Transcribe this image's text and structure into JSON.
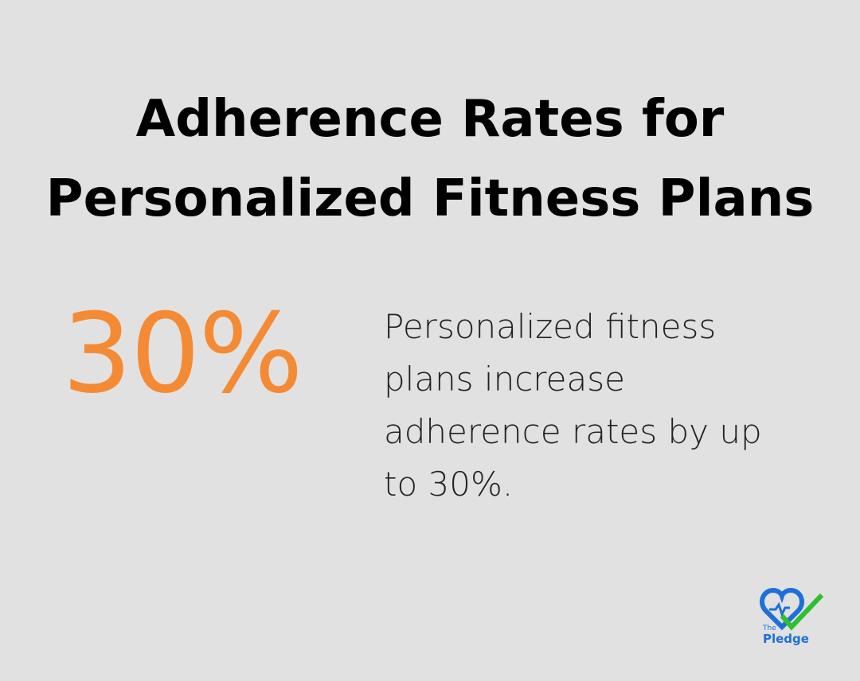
{
  "title": [
    "Adherence Rates for",
    "Personalized Fitness Plans"
  ],
  "stat": "30%",
  "description": "Personalized fitness plans increase adherence rates by up to 30%.",
  "logo": {
    "small": "The",
    "name": "Pledge"
  }
}
